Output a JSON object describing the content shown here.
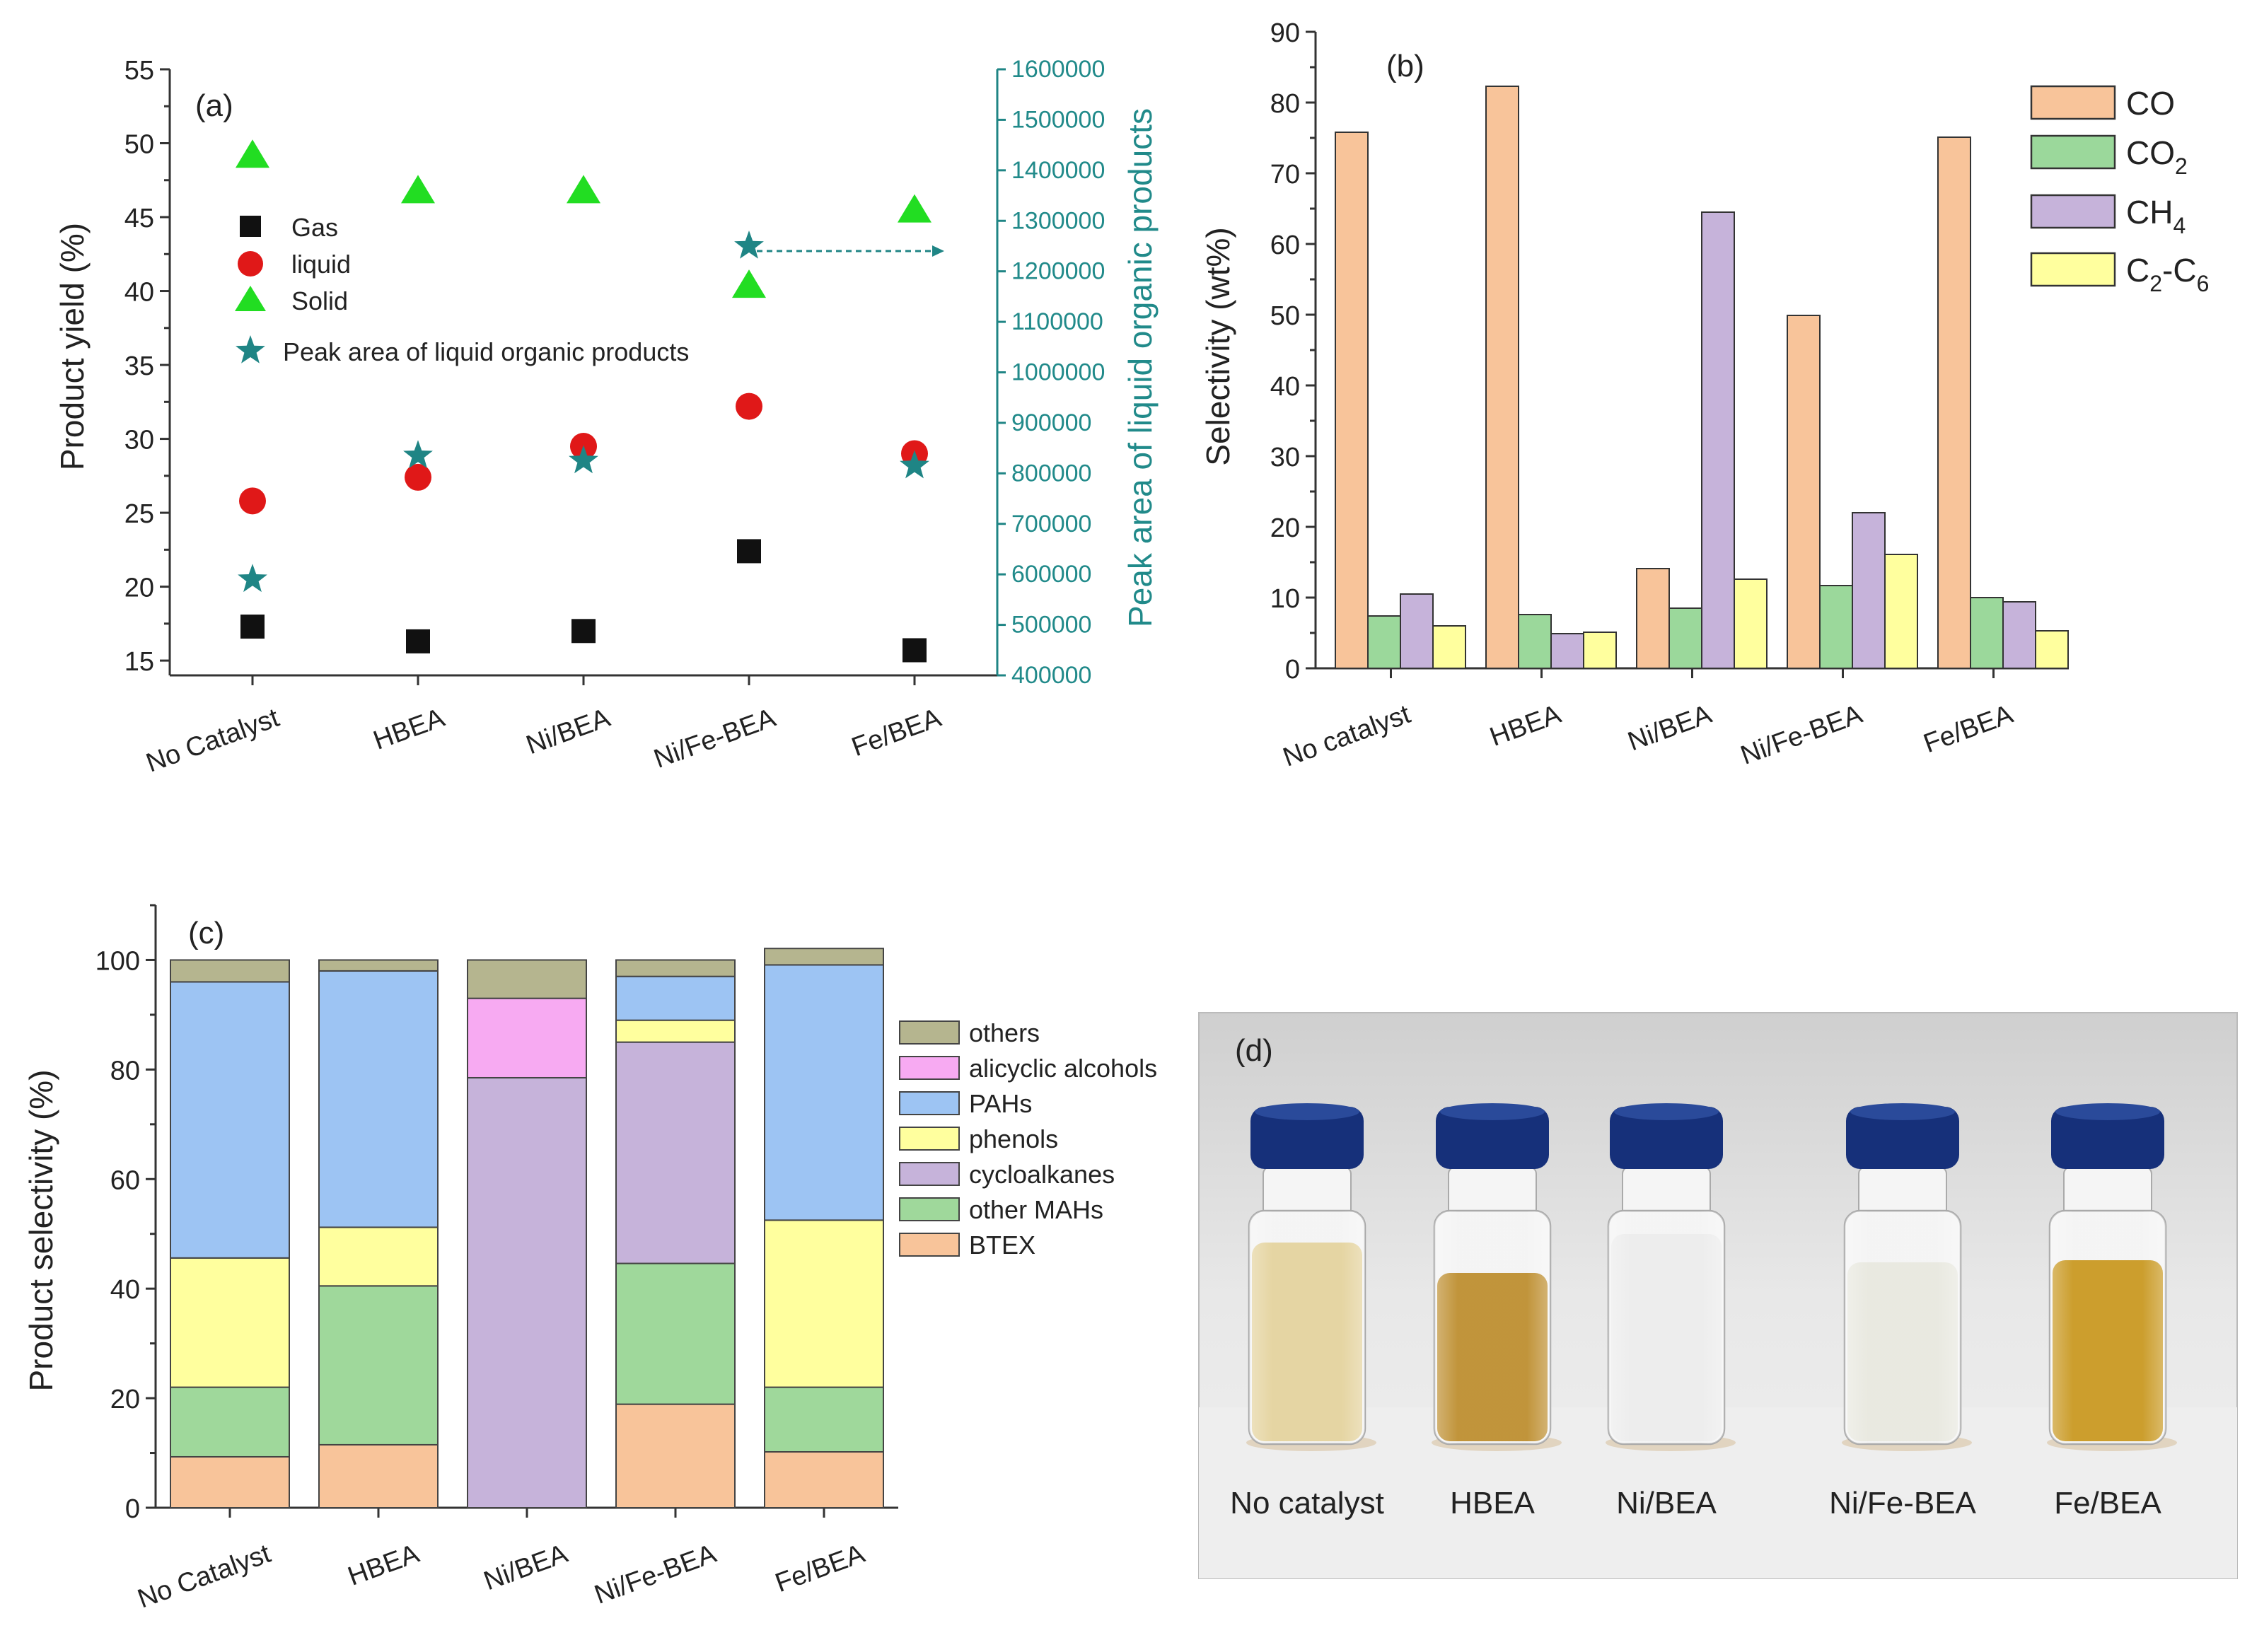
{
  "colors": {
    "gas": "#111111",
    "liquid": "#e01818",
    "solid": "#22dd22",
    "peak": "#1f8585",
    "CO": "#f8c49a",
    "CO2": "#9bd89b",
    "CH4": "#c6b3da",
    "C2C6": "#ffff9e",
    "others": "#b5b58f",
    "alicyclic_alcohols": "#f7aaf2",
    "PAHs": "#9dc4f3",
    "phenols": "#ffff9e",
    "cycloalkanes": "#c6b3da",
    "other_MAHs": "#9fd89b",
    "BTEX": "#f8c49a"
  },
  "chart_data": [
    {
      "panel": "(a)",
      "type": "scatter",
      "categories": [
        "No Catalyst",
        "HBEA",
        "Ni/BEA",
        "Ni/Fe-BEA",
        "Fe/BEA"
      ],
      "ylabel": "Product yield (%)",
      "y2label": "Peak area of liquid organic products",
      "ylim": [
        14,
        55
      ],
      "yticks": [
        "15",
        "20",
        "25",
        "30",
        "35",
        "40",
        "45",
        "50",
        "55"
      ],
      "y2lim": [
        400000,
        1600000
      ],
      "y2ticks": [
        "400000",
        "500000",
        "600000",
        "700000",
        "800000",
        "900000",
        "1000000",
        "1100000",
        "1200000",
        "1300000",
        "1400000",
        "1500000",
        "1600000"
      ],
      "series": [
        {
          "name": "Gas",
          "axis": "left",
          "marker": "square",
          "values": [
            17.3,
            16.3,
            17.0,
            22.4,
            15.7
          ]
        },
        {
          "name": "liquid",
          "axis": "left",
          "marker": "circle",
          "values": [
            25.8,
            27.4,
            29.5,
            32.2,
            29.0
          ]
        },
        {
          "name": "Solid",
          "axis": "left",
          "marker": "triangle",
          "values": [
            49.2,
            46.8,
            46.8,
            40.4,
            45.5
          ]
        },
        {
          "name": "Peak area of liquid organic products",
          "axis": "right",
          "marker": "star",
          "values": [
            590000,
            835000,
            825000,
            1250000,
            815000
          ]
        }
      ]
    },
    {
      "panel": "(b)",
      "type": "bar",
      "categories": [
        "No catalyst",
        "HBEA",
        "Ni/BEA",
        "Ni/Fe-BEA",
        "Fe/BEA"
      ],
      "ylabel": "Selectivity (wt%)",
      "ylim": [
        0,
        90
      ],
      "yticks": [
        "0",
        "10",
        "20",
        "30",
        "40",
        "50",
        "60",
        "70",
        "80",
        "90"
      ],
      "series": [
        {
          "name": "CO",
          "values": [
            75.8,
            82.3,
            14.1,
            49.9,
            75.1
          ]
        },
        {
          "name": "CO2",
          "values": [
            7.4,
            7.6,
            8.5,
            11.7,
            10.0
          ]
        },
        {
          "name": "CH4",
          "values": [
            10.5,
            4.9,
            64.5,
            22.0,
            9.4
          ]
        },
        {
          "name": "C2-C6",
          "values": [
            6.0,
            5.1,
            12.6,
            16.1,
            5.3
          ]
        }
      ],
      "legend": {
        "CO": "CO",
        "CO2_main": "CO",
        "CO2_sub": "2",
        "CH4_main": "CH",
        "CH4_sub": "4",
        "C2C6_a": "C",
        "C2C6_s1": "2",
        "C2C6_b": "-C",
        "C2C6_s2": "6"
      }
    },
    {
      "panel": "(c)",
      "type": "bar",
      "stacked": true,
      "categories": [
        "No Catalyst",
        "HBEA",
        "Ni/BEA",
        "Ni/Fe-BEA",
        "Fe/BEA"
      ],
      "ylabel": "Product selectivity (%)",
      "ylim": [
        0,
        110
      ],
      "yticks": [
        "0",
        "20",
        "40",
        "60",
        "80",
        "100"
      ],
      "series": [
        {
          "name": "BTEX",
          "values": [
            9.3,
            11.5,
            0,
            18.9,
            10.2
          ]
        },
        {
          "name": "other MAHs",
          "values": [
            12.7,
            29.0,
            0,
            25.7,
            11.8
          ]
        },
        {
          "name": "cycloalkanes",
          "values": [
            0,
            0,
            78.5,
            40.4,
            0
          ]
        },
        {
          "name": "phenols",
          "values": [
            23.6,
            10.7,
            0,
            4.0,
            30.5
          ]
        },
        {
          "name": "PAHs",
          "values": [
            50.4,
            46.8,
            0,
            8.0,
            46.6
          ]
        },
        {
          "name": "alicyclic alcohols",
          "values": [
            0,
            0,
            14.5,
            0,
            0
          ]
        },
        {
          "name": "others",
          "values": [
            4.0,
            2.0,
            7.0,
            3.0,
            3.0
          ]
        }
      ],
      "legend_order": [
        "others",
        "alicyclic alcohols",
        "PAHs",
        "phenols",
        "cycloalkanes",
        "other MAHs",
        "BTEX"
      ]
    }
  ],
  "panel_d": {
    "label": "(d)",
    "vials": [
      {
        "label": "No catalyst",
        "liquid_color": "#e2cf96"
      },
      {
        "label": "HBEA",
        "liquid_color": "#b98520"
      },
      {
        "label": "Ni/BEA",
        "liquid_color": "#eaeaea"
      },
      {
        "label": "Ni/Fe-BEA",
        "liquid_color": "#e6e6dc"
      },
      {
        "label": "Fe/BEA",
        "liquid_color": "#c4900f"
      }
    ]
  }
}
